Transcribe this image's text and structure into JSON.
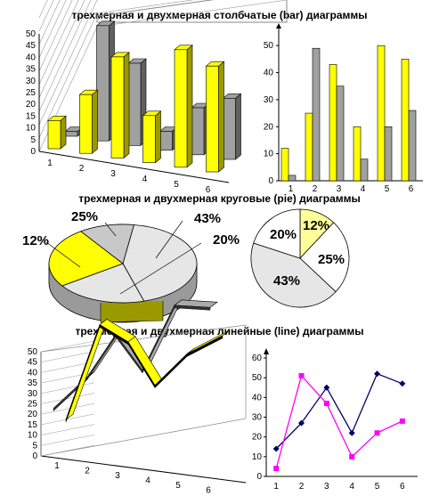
{
  "headings": {
    "bar": "трехмерная и двухмерная столбчатые (bar) диаграммы",
    "pie": "трехмерная и двухмерная круговые (pie) диаграммы",
    "line": "трехмерная и двухмерная линейные (line) диаграммы"
  },
  "colors": {
    "yellow": "#ffff00",
    "yellow_side": "#9a9a00",
    "gray": "#a0a0a0",
    "gray_side": "#606060",
    "navy": "#000066",
    "magenta": "#ff00ff",
    "light_yellow": "#ffff99",
    "light_gray": "#e6e6e6",
    "mid_gray": "#c8c8c8"
  },
  "chart_data": [
    {
      "type": "bar",
      "variant": "3d",
      "categories": [
        "1",
        "2",
        "3",
        "4",
        "5",
        "6"
      ],
      "series": [
        {
          "values": [
            12,
            25,
            43,
            20,
            50,
            45
          ],
          "color": "yellow"
        },
        {
          "values": [
            2,
            49,
            35,
            8,
            20,
            26
          ],
          "color": "gray"
        }
      ],
      "yticks": [
        "0",
        "5",
        "10",
        "15",
        "20",
        "25",
        "30",
        "35",
        "40",
        "45",
        "50"
      ],
      "ylim": [
        0,
        50
      ]
    },
    {
      "type": "bar",
      "variant": "2d",
      "categories": [
        "1",
        "2",
        "3",
        "4",
        "5",
        "6"
      ],
      "series": [
        {
          "values": [
            12,
            25,
            43,
            20,
            50,
            45
          ],
          "color": "yellow"
        },
        {
          "values": [
            2,
            49,
            35,
            8,
            20,
            26
          ],
          "color": "gray"
        }
      ],
      "yticks": [
        "0",
        "10",
        "20",
        "30",
        "40",
        "50"
      ],
      "ylim": [
        0,
        55
      ]
    },
    {
      "type": "pie",
      "variant": "3d",
      "slices": [
        {
          "label": "43%",
          "value": 43,
          "color": "light_gray"
        },
        {
          "label": "20%",
          "value": 20,
          "color": "light_gray"
        },
        {
          "label": "25%",
          "value": 25,
          "color": "yellow"
        },
        {
          "label": "12%",
          "value": 12,
          "color": "mid_gray"
        }
      ],
      "extra_labels": [
        "25%"
      ]
    },
    {
      "type": "pie",
      "variant": "2d",
      "slices": [
        {
          "label": "12%",
          "value": 12,
          "color": "light_yellow"
        },
        {
          "label": "25%",
          "value": 25,
          "color": "white"
        },
        {
          "label": "43%",
          "value": 43,
          "color": "light_gray"
        },
        {
          "label": "20%",
          "value": 20,
          "color": "white"
        }
      ]
    },
    {
      "type": "line",
      "variant": "3d",
      "categories": [
        "1",
        "2",
        "3",
        "4",
        "5",
        "6"
      ],
      "yticks": [
        "0",
        "5",
        "10",
        "15",
        "20",
        "25",
        "30",
        "35",
        "40",
        "45",
        "50"
      ],
      "series": [
        {
          "values": [
            14,
            27,
            45,
            22,
            52,
            47
          ],
          "color": "gray"
        },
        {
          "values": [
            4,
            51,
            37,
            10,
            22,
            28
          ],
          "color": "yellow"
        }
      ],
      "ylim": [
        0,
        50
      ]
    },
    {
      "type": "line",
      "variant": "2d",
      "categories": [
        "1",
        "2",
        "3",
        "4",
        "5",
        "6"
      ],
      "yticks": [
        "0",
        "10",
        "20",
        "30",
        "40",
        "50",
        "60"
      ],
      "series": [
        {
          "values": [
            14,
            27,
            45,
            22,
            52,
            47
          ],
          "color": "navy",
          "marker": "diamond"
        },
        {
          "values": [
            4,
            51,
            37,
            10,
            22,
            28
          ],
          "color": "magenta",
          "marker": "square"
        }
      ],
      "ylim": [
        0,
        60
      ]
    }
  ]
}
